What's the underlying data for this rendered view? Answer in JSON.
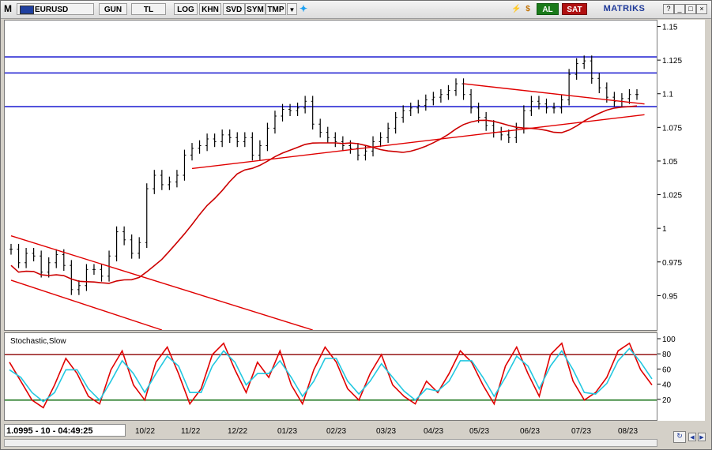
{
  "toolbar": {
    "menu_label": "M",
    "symbol": "EURUSD",
    "buttons": [
      "GUN",
      "TL",
      "LOG",
      "KHN",
      "SVD",
      "SYM",
      "TMP"
    ],
    "buy_label": "AL",
    "sell_label": "SAT",
    "brand": "MATRIKS",
    "colors": {
      "buy": "#1a7a1a",
      "sell": "#b01010",
      "brand": "#1f3a9a"
    }
  },
  "status": {
    "readout": "1.0995 - 10 - 04:49:25"
  },
  "chart_data": [
    {
      "type": "line",
      "title": "",
      "symbol": "EURUSD",
      "representation": "high-low bars (daily)",
      "ylim": [
        0.925,
        1.155
      ],
      "yticks": [
        "1.15",
        "1.125",
        "1.1",
        "1.075",
        "1.05",
        "1.025",
        "1",
        "0.975",
        "0.95"
      ],
      "x_labels": [
        "10/22",
        "11/22",
        "12/22",
        "01/23",
        "02/23",
        "03/23",
        "04/23",
        "05/23",
        "06/23",
        "07/23",
        "08/23"
      ],
      "close_path": [
        [
          "09/22",
          0.985
        ],
        [
          "09/22",
          0.975
        ],
        [
          "09/22",
          0.982
        ],
        [
          "09/22",
          0.98
        ],
        [
          "10/22",
          0.968
        ],
        [
          "10/22",
          0.975
        ],
        [
          "10/22",
          0.981
        ],
        [
          "10/22",
          0.973
        ],
        [
          "10/22",
          0.955
        ],
        [
          "10/22",
          0.958
        ],
        [
          "10/22",
          0.97
        ],
        [
          "10/22",
          0.97
        ],
        [
          "10/22",
          0.965
        ],
        [
          "10/22",
          0.98
        ],
        [
          "10/22",
          0.998
        ],
        [
          "10/22",
          0.992
        ],
        [
          "11/22",
          0.982
        ],
        [
          "11/22",
          0.99
        ],
        [
          "11/22",
          1.03
        ],
        [
          "11/22",
          1.04
        ],
        [
          "11/22",
          1.033
        ],
        [
          "11/22",
          1.035
        ],
        [
          "11/22",
          1.04
        ],
        [
          "12/22",
          1.055
        ],
        [
          "12/22",
          1.06
        ],
        [
          "12/22",
          1.062
        ],
        [
          "12/22",
          1.067
        ],
        [
          "12/22",
          1.065
        ],
        [
          "12/22",
          1.07
        ],
        [
          "12/22",
          1.068
        ],
        [
          "12/22",
          1.065
        ],
        [
          "12/22",
          1.068
        ],
        [
          "01/23",
          1.055
        ],
        [
          "01/23",
          1.062
        ],
        [
          "01/23",
          1.075
        ],
        [
          "01/23",
          1.084
        ],
        [
          "01/23",
          1.089
        ],
        [
          "01/23",
          1.088
        ],
        [
          "02/23",
          1.09
        ],
        [
          "02/23",
          1.095
        ],
        [
          "02/23",
          1.078
        ],
        [
          "02/23",
          1.072
        ],
        [
          "02/23",
          1.068
        ],
        [
          "02/23",
          1.065
        ],
        [
          "02/23",
          1.062
        ],
        [
          "03/23",
          1.06
        ],
        [
          "03/23",
          1.055
        ],
        [
          "03/23",
          1.058
        ],
        [
          "03/23",
          1.065
        ],
        [
          "03/23",
          1.068
        ],
        [
          "03/23",
          1.075
        ],
        [
          "03/23",
          1.083
        ],
        [
          "04/23",
          1.088
        ],
        [
          "04/23",
          1.09
        ],
        [
          "04/23",
          1.092
        ],
        [
          "04/23",
          1.096
        ],
        [
          "04/23",
          1.098
        ],
        [
          "04/23",
          1.1
        ],
        [
          "05/23",
          1.103
        ],
        [
          "05/23",
          1.108
        ],
        [
          "05/23",
          1.1
        ],
        [
          "05/23",
          1.09
        ],
        [
          "05/23",
          1.083
        ],
        [
          "05/23",
          1.077
        ],
        [
          "05/23",
          1.072
        ],
        [
          "06/23",
          1.07
        ],
        [
          "06/23",
          1.068
        ],
        [
          "06/23",
          1.075
        ],
        [
          "06/23",
          1.088
        ],
        [
          "06/23",
          1.095
        ],
        [
          "06/23",
          1.093
        ],
        [
          "06/23",
          1.09
        ],
        [
          "06/23",
          1.09
        ],
        [
          "07/23",
          1.096
        ],
        [
          "07/23",
          1.115
        ],
        [
          "07/23",
          1.123
        ],
        [
          "07/23",
          1.125
        ],
        [
          "07/23",
          1.112
        ],
        [
          "07/23",
          1.105
        ],
        [
          "07/23",
          1.098
        ],
        [
          "08/23",
          1.095
        ],
        [
          "08/23",
          1.097
        ],
        [
          "08/23",
          1.1
        ],
        [
          "08/23",
          1.1
        ]
      ],
      "horizontal_levels": [
        1.128,
        1.116,
        1.091
      ],
      "colors": {
        "bars": "#000000",
        "levels": "#0000cc",
        "trendlines": "#e00000",
        "moving_average": "#cc0000"
      }
    },
    {
      "type": "line",
      "title": "Stochastic,Slow",
      "ylim": [
        0,
        100
      ],
      "yticks": [
        "100",
        "80",
        "60",
        "40",
        "20"
      ],
      "reference_levels": [
        80,
        20
      ],
      "series": [
        {
          "color": "#e00000",
          "values": [
            70,
            45,
            20,
            10,
            40,
            75,
            55,
            25,
            15,
            60,
            85,
            40,
            20,
            70,
            90,
            55,
            15,
            35,
            80,
            95,
            60,
            30,
            70,
            50,
            85,
            40,
            15,
            60,
            90,
            70,
            35,
            20,
            55,
            80,
            40,
            25,
            15,
            45,
            30,
            55,
            85,
            70,
            40,
            15,
            65,
            90,
            55,
            25,
            80,
            95,
            45,
            20,
            30,
            50,
            85,
            95,
            60,
            40
          ]
        },
        {
          "color": "#22c8e0",
          "values": [
            60,
            50,
            30,
            18,
            30,
            60,
            60,
            35,
            20,
            45,
            72,
            55,
            30,
            55,
            78,
            65,
            30,
            30,
            65,
            85,
            70,
            40,
            55,
            55,
            72,
            50,
            25,
            45,
            75,
            75,
            45,
            28,
            45,
            68,
            50,
            32,
            20,
            35,
            32,
            45,
            72,
            72,
            50,
            25,
            50,
            78,
            65,
            35,
            65,
            85,
            60,
            30,
            28,
            42,
            72,
            88,
            70,
            48
          ]
        }
      ]
    }
  ]
}
